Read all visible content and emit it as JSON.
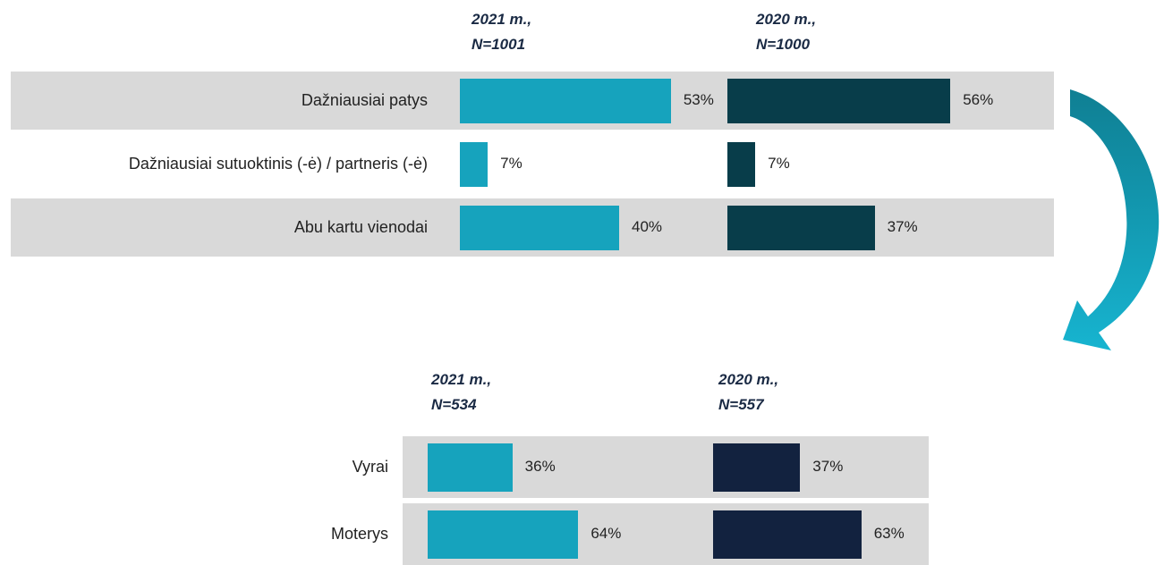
{
  "chart_data": [
    {
      "type": "hbar",
      "categories": [
        "Dažniausiai patys",
        "Dažniausiai sutuoktinis (-ė) / partneris (-ė)",
        "Abu kartu vienodai"
      ],
      "series": [
        {
          "name": "2021 m., N=1001",
          "color": "#16a3bd",
          "values": [
            53,
            7,
            40
          ],
          "value_labels": [
            "53%",
            "7%",
            "40%"
          ]
        },
        {
          "name": "2020 m., N=1000",
          "color": "#083d4a",
          "values": [
            56,
            7,
            37
          ],
          "value_labels": [
            "56%",
            "7%",
            "37%"
          ]
        }
      ]
    },
    {
      "type": "hbar",
      "categories": [
        "Vyrai",
        "Moterys"
      ],
      "series": [
        {
          "name": "2021 m., N=534",
          "color": "#16a3bd",
          "values": [
            36,
            64
          ],
          "value_labels": [
            "36%",
            "64%"
          ]
        },
        {
          "name": "2020 m., N=557",
          "color": "#12223f",
          "values": [
            37,
            63
          ],
          "value_labels": [
            "37%",
            "63%"
          ]
        }
      ]
    }
  ]
}
